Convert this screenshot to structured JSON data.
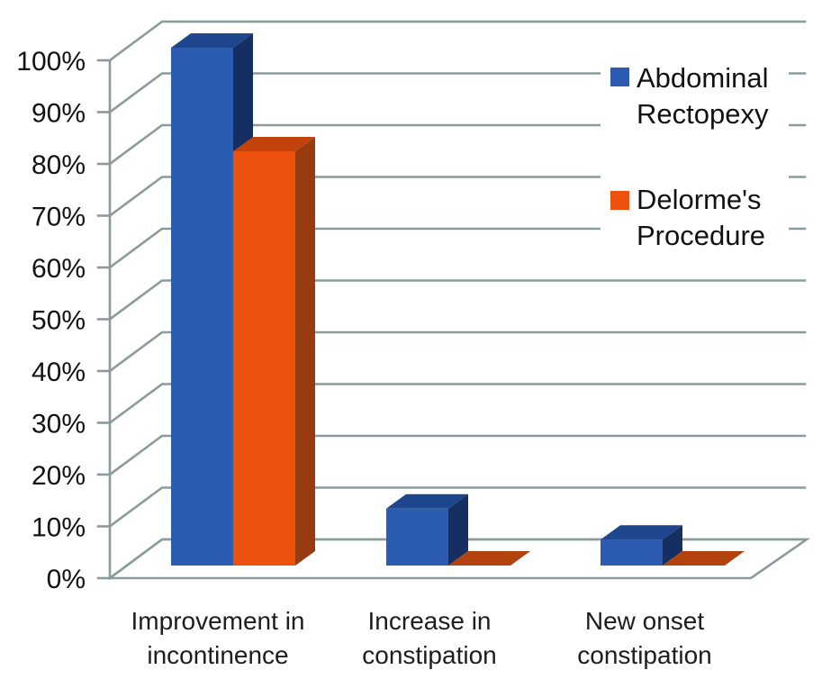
{
  "page": {
    "background": "#FFFFFF"
  },
  "chart_data": {
    "type": "bar",
    "subtype": "3d-clustered-column",
    "title": "",
    "xlabel": "",
    "ylabel": "",
    "categories": [
      "Improvement in incontinence",
      "Increase in constipation",
      "New onset constipation"
    ],
    "category_lines": [
      [
        "Improvement in",
        "incontinence"
      ],
      [
        "Increase in",
        "constipation"
      ],
      [
        "New onset",
        "constipation"
      ]
    ],
    "series": [
      {
        "name": "Abdominal Rectopexy",
        "values": [
          100,
          11,
          5
        ],
        "colors": {
          "front": "#2B5CB1",
          "top": "#1D468C",
          "side": "#152F63"
        }
      },
      {
        "name": "Delorme's Procedure",
        "values": [
          80,
          0,
          0
        ],
        "colors": {
          "front": "#EC520E",
          "top": "#C2440A",
          "side": "#993B10",
          "flat": "#B2430E"
        }
      }
    ],
    "ylim": [
      0,
      100
    ],
    "ytick_step": 10,
    "yticks": [
      "0%",
      "10%",
      "20%",
      "30%",
      "40%",
      "50%",
      "60%",
      "70%",
      "80%",
      "90%",
      "100%"
    ],
    "unit": "%",
    "grid": true,
    "grid_color": "#8B9A9B",
    "text_color": "#121212",
    "legend": {
      "position": "right-overlay",
      "background": "#FFFFFF",
      "entries": [
        {
          "label": "Abdominal Rectopexy",
          "lines": [
            "Abdominal",
            "Rectopexy"
          ],
          "color": "#2B5CB1"
        },
        {
          "label": "Delorme's Procedure",
          "lines": [
            "Delorme's",
            "Procedure"
          ],
          "color": "#EC520E"
        }
      ]
    }
  }
}
